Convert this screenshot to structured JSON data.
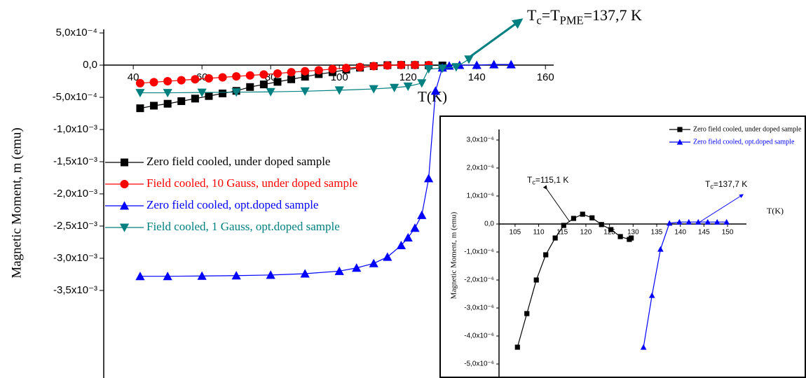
{
  "chart_data": [
    {
      "type": "line",
      "ylabel": "Magnetic Moment, m (emu)",
      "xlabel": "T(K)",
      "xlim": [
        31.4,
        162.4
      ],
      "ylim": [
        -0.00486,
        0.000555
      ],
      "xticks": [
        40,
        60,
        80,
        100,
        120,
        140,
        160
      ],
      "yticks": [
        {
          "value": 0.0005,
          "label": "5,0x10⁻⁴"
        },
        {
          "value": 0,
          "label": "0,0"
        },
        {
          "value": -0.0005,
          "label": "-5,0x10⁻⁴"
        },
        {
          "value": -0.001,
          "label": "-1,0x10⁻³"
        },
        {
          "value": -0.0015,
          "label": "-1,5x10⁻³"
        },
        {
          "value": -0.002,
          "label": "-2,0x10⁻³"
        },
        {
          "value": -0.0025,
          "label": "-2,5x10⁻³"
        },
        {
          "value": -0.003,
          "label": "-3,0x10⁻³"
        },
        {
          "value": -0.0035,
          "label": "-3,5x10⁻³"
        }
      ],
      "annotation_parts": [
        {
          "text": "T"
        },
        {
          "text": "c",
          "sub": true
        },
        {
          "text": "=T"
        },
        {
          "text": "PME",
          "sub": true
        },
        {
          "text": "=137,7 K"
        }
      ],
      "series": [
        {
          "name": "Zero field cooled, under doped sample",
          "color": "#000000",
          "marker": "square",
          "x": [
            42,
            46,
            50,
            54,
            58,
            62,
            66,
            70,
            74,
            78,
            82,
            86,
            90,
            94,
            98,
            102,
            106,
            110,
            114,
            118,
            122,
            126,
            130
          ],
          "values": [
            -0.00067,
            -0.00063,
            -0.0006,
            -0.00056,
            -0.00052,
            -0.00048,
            -0.00044,
            -0.0004,
            -0.00034,
            -0.0003,
            -0.00026,
            -0.00022,
            -0.00018,
            -0.00014,
            -0.00011,
            -7e-05,
            -4e-05,
            -1.5e-05,
            0,
            3e-06,
            2e-06,
            -2e-06,
            -5e-06
          ]
        },
        {
          "name": "Field cooled, 10 Gauss, under doped sample",
          "color": "#ff0000",
          "marker": "circle",
          "x": [
            42,
            46,
            50,
            54,
            58,
            62,
            66,
            70,
            74,
            78,
            82,
            86,
            90,
            94,
            98,
            102,
            106,
            110,
            114,
            118,
            122,
            126
          ],
          "values": [
            -0.00028,
            -0.000265,
            -0.00025,
            -0.000235,
            -0.00022,
            -0.000205,
            -0.00019,
            -0.000175,
            -0.00016,
            -0.000145,
            -0.00013,
            -0.00011,
            -9.5e-05,
            -8e-05,
            -6e-05,
            -4.5e-05,
            -3e-05,
            -1.5e-05,
            -5e-06,
            2e-06,
            2e-06,
            0
          ]
        },
        {
          "name": "Zero field cooled, opt.doped sample",
          "color": "#0000ff",
          "marker": "triangle-up",
          "x": [
            42,
            50,
            60,
            70,
            80,
            90,
            100,
            105,
            110,
            114,
            118,
            120,
            122,
            124,
            126,
            128,
            130,
            132,
            135,
            140,
            145,
            150
          ],
          "values": [
            -0.00328,
            -0.00328,
            -0.003275,
            -0.00327,
            -0.00326,
            -0.00324,
            -0.0032,
            -0.00315,
            -0.00308,
            -0.00298,
            -0.0028,
            -0.00268,
            -0.00253,
            -0.00233,
            -0.00176,
            -0.0004,
            -4e-05,
            -1e-05,
            0,
            0,
            1e-05,
            1e-05
          ]
        },
        {
          "name": "Field cooled, 1 Gauss, opt.doped sample",
          "color": "#008080",
          "marker": "triangle-down",
          "x": [
            42,
            50,
            60,
            70,
            80,
            90,
            100,
            110,
            116,
            120,
            124,
            126,
            130,
            134,
            137.7
          ],
          "values": [
            -0.00043,
            -0.00043,
            -0.000425,
            -0.00042,
            -0.000415,
            -0.000405,
            -0.00039,
            -0.00037,
            -0.00035,
            -0.00033,
            -0.00028,
            -6e-05,
            -5e-05,
            -3e-05,
            9e-05
          ]
        }
      ]
    },
    {
      "type": "line",
      "ylabel": "Magnetic Moment, m (emu)",
      "xlabel": "T(K)",
      "xlim": [
        101.6,
        154
      ],
      "ylim": [
        -5.5e-06,
        3.375e-06
      ],
      "xticks": [
        105,
        110,
        115,
        120,
        125,
        130,
        135,
        140,
        145,
        150
      ],
      "yticks": [
        {
          "value": 3e-06,
          "label": "3,0x10⁻⁶"
        },
        {
          "value": 2e-06,
          "label": "2,0x10⁻⁶"
        },
        {
          "value": 1e-06,
          "label": "1,0x10⁻⁶"
        },
        {
          "value": 0,
          "label": "0,0"
        },
        {
          "value": -1e-06,
          "label": "-1,0x10⁻⁶"
        },
        {
          "value": -2e-06,
          "label": "-2,0x10⁻⁶"
        },
        {
          "value": -3e-06,
          "label": "-3,0x10⁻⁶"
        },
        {
          "value": -4e-06,
          "label": "-4,0x10⁻⁶"
        },
        {
          "value": -5e-06,
          "label": "-5,0x10⁻⁶"
        }
      ],
      "annotations": [
        [
          {
            "text": "T"
          },
          {
            "text": "c",
            "sub": true
          },
          {
            "text": "=115,1 K"
          }
        ],
        [
          {
            "text": "T"
          },
          {
            "text": "c",
            "sub": true
          },
          {
            "text": "=137,7 K"
          }
        ]
      ],
      "series": [
        {
          "name": "Zero field cooled, under doped sample",
          "color": "#000000",
          "marker": "square",
          "x": [
            105.5,
            107.5,
            109.5,
            111.5,
            113.5,
            115.3,
            117.4,
            119.3,
            121.3,
            123.3,
            125.3,
            127.3,
            129.2,
            129.6
          ],
          "values": [
            -4.4e-06,
            -3.2e-06,
            -2e-06,
            -1.1e-06,
            -5e-07,
            -5e-08,
            2e-07,
            3.5e-07,
            2.2e-07,
            -2e-08,
            -2e-07,
            -4.5e-07,
            -5.5e-07,
            -5e-07
          ]
        },
        {
          "name": "Zero field cooled, opt.doped sample",
          "color": "#0000ff",
          "marker": "triangle-up",
          "x": [
            132.2,
            134,
            135.8,
            137.7,
            139.8,
            141.8,
            143.8,
            145.8,
            147.8,
            149.8
          ],
          "values": [
            -4.4e-06,
            -2.55e-06,
            -9e-07,
            3e-08,
            7e-08,
            7e-08,
            7e-08,
            7e-08,
            7e-08,
            7e-08
          ]
        }
      ]
    }
  ]
}
